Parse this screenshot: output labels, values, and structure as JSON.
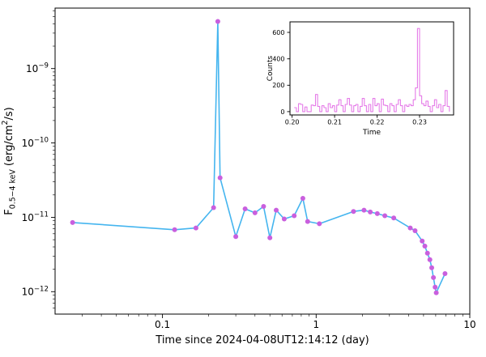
{
  "chart_data": [
    {
      "id": "main",
      "type": "line",
      "title": "",
      "xlabel": "Time since 2024-04-08UT12:14:12 (day)",
      "ylabel": "F_0.5−4 keV (erg/cm^2/s)",
      "ylabel_parts": [
        {
          "t": "F"
        },
        {
          "t": "0.5−4 keV",
          "pos": "sub"
        },
        {
          "t": " (erg/cm"
        },
        {
          "t": "2",
          "pos": "sup"
        },
        {
          "t": "/s)"
        }
      ],
      "xscale": "log",
      "yscale": "log",
      "xlim": [
        0.02,
        10
      ],
      "ylim": [
        5e-13,
        6.5e-09
      ],
      "xticks": [
        0.1,
        1,
        10
      ],
      "xtick_labels": [
        "0.1",
        "1",
        "10"
      ],
      "yticks": [
        1e-12,
        1e-11,
        1e-10,
        1e-09
      ],
      "ytick_labels": [
        "10^−12",
        "10^−11",
        "10^−10",
        "10^−9"
      ],
      "grid": false,
      "legend": false,
      "line_color": "#45b5ef",
      "marker_color": "#c95fde",
      "series": [
        {
          "name": "flux_0.5-4_keV",
          "x": [
            0.026,
            0.12,
            0.165,
            0.215,
            0.229,
            0.237,
            0.3,
            0.345,
            0.4,
            0.455,
            0.5,
            0.55,
            0.62,
            0.72,
            0.82,
            0.88,
            1.05,
            1.75,
            2.05,
            2.25,
            2.5,
            2.8,
            3.2,
            4.1,
            4.4,
            4.9,
            5.1,
            5.3,
            5.5,
            5.65,
            5.8,
            5.95,
            6.05,
            6.9
          ],
          "y": [
            8.5e-12,
            6.8e-12,
            7.2e-12,
            1.35e-11,
            4.3e-09,
            3.4e-11,
            5.5e-12,
            1.3e-11,
            1.15e-11,
            1.4e-11,
            5.3e-12,
            1.25e-11,
            9.5e-12,
            1.05e-11,
            1.8e-11,
            8.8e-12,
            8.2e-12,
            1.2e-11,
            1.25e-11,
            1.18e-11,
            1.12e-11,
            1.05e-11,
            9.8e-12,
            7.2e-12,
            6.6e-12,
            4.8e-12,
            4.1e-12,
            3.3e-12,
            2.7e-12,
            2.1e-12,
            1.55e-12,
            1.15e-12,
            9.7e-13,
            1.75e-12
          ]
        }
      ]
    },
    {
      "id": "inset",
      "type": "step",
      "title": "",
      "xlabel": "Time",
      "ylabel": "Counts",
      "xscale": "linear",
      "yscale": "linear",
      "xlim": [
        0.1995,
        0.238
      ],
      "ylim": [
        -25,
        680
      ],
      "xticks": [
        0.2,
        0.21,
        0.22,
        0.23
      ],
      "xtick_labels": [
        "0.20",
        "0.21",
        "0.22",
        "0.23"
      ],
      "yticks": [
        0,
        200,
        400,
        600
      ],
      "ytick_labels": [
        "0",
        "200",
        "400",
        "600"
      ],
      "grid": false,
      "legend": false,
      "line_color": "#e57ce8",
      "bg": "#ffffff",
      "series": [
        {
          "name": "counts",
          "x": [
            0.2005,
            0.201,
            0.2015,
            0.202,
            0.2025,
            0.203,
            0.2035,
            0.204,
            0.2045,
            0.205,
            0.2055,
            0.206,
            0.2065,
            0.207,
            0.2075,
            0.208,
            0.2085,
            0.209,
            0.2095,
            0.21,
            0.2105,
            0.211,
            0.2115,
            0.212,
            0.2125,
            0.213,
            0.2135,
            0.214,
            0.2145,
            0.215,
            0.2155,
            0.216,
            0.2165,
            0.217,
            0.2175,
            0.218,
            0.2185,
            0.219,
            0.2195,
            0.22,
            0.2205,
            0.221,
            0.2215,
            0.222,
            0.2225,
            0.223,
            0.2235,
            0.224,
            0.2245,
            0.225,
            0.2255,
            0.226,
            0.2265,
            0.227,
            0.2275,
            0.228,
            0.2285,
            0.229,
            0.2295,
            0.23,
            0.2305,
            0.231,
            0.2315,
            0.232,
            0.2325,
            0.233,
            0.2335,
            0.234,
            0.2345,
            0.235,
            0.2355,
            0.236,
            0.2365,
            0.237
          ],
          "y": [
            30,
            0,
            60,
            55,
            0,
            35,
            0,
            0,
            50,
            45,
            130,
            40,
            0,
            45,
            30,
            0,
            60,
            30,
            45,
            0,
            50,
            90,
            45,
            0,
            55,
            100,
            50,
            0,
            45,
            55,
            0,
            40,
            100,
            45,
            0,
            55,
            0,
            100,
            45,
            60,
            0,
            95,
            50,
            45,
            0,
            60,
            45,
            0,
            55,
            90,
            45,
            0,
            50,
            40,
            55,
            45,
            90,
            180,
            630,
            120,
            60,
            45,
            80,
            40,
            0,
            45,
            90,
            30,
            55,
            0,
            45,
            160,
            40,
            0
          ]
        }
      ]
    }
  ]
}
